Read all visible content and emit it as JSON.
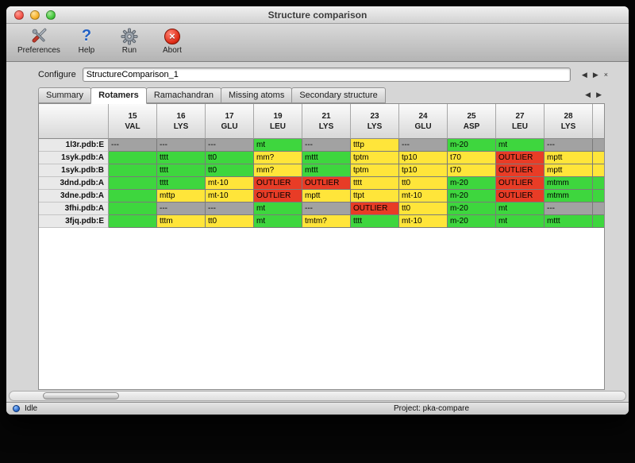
{
  "window": {
    "title": "Structure comparison"
  },
  "toolbar": {
    "items": [
      {
        "label": "Preferences",
        "icon": "preferences-tools-icon"
      },
      {
        "label": "Help",
        "icon": "help-question-icon",
        "glyph": "?"
      },
      {
        "label": "Run",
        "icon": "run-gear-icon"
      },
      {
        "label": "Abort",
        "icon": "abort-icon",
        "glyph": "×"
      }
    ]
  },
  "configure": {
    "label": "Configure",
    "value": "StructureComparison_1",
    "nav_back": "◀",
    "nav_forward": "▶",
    "nav_close": "×"
  },
  "tabs": {
    "items": [
      {
        "label": "Summary"
      },
      {
        "label": "Rotamers"
      },
      {
        "label": "Ramachandran"
      },
      {
        "label": "Missing atoms"
      },
      {
        "label": "Secondary structure"
      }
    ],
    "active_index": 1,
    "nav_back": "◀",
    "nav_forward": "▶"
  },
  "colors": {
    "green": "#3ed63e",
    "yellow": "#ffe53a",
    "gray": "#a2a2a2",
    "red": "#e83c26"
  },
  "table": {
    "columns": [
      {
        "num": "15",
        "res": "VAL"
      },
      {
        "num": "16",
        "res": "LYS"
      },
      {
        "num": "17",
        "res": "GLU"
      },
      {
        "num": "19",
        "res": "LEU"
      },
      {
        "num": "21",
        "res": "LYS"
      },
      {
        "num": "23",
        "res": "LYS"
      },
      {
        "num": "24",
        "res": "GLU"
      },
      {
        "num": "25",
        "res": "ASP"
      },
      {
        "num": "27",
        "res": "LEU"
      },
      {
        "num": "28",
        "res": "LYS"
      }
    ],
    "rows": [
      {
        "label": "1l3r.pdb:E",
        "partial": "gray",
        "cells": [
          [
            "---",
            "gray"
          ],
          [
            "---",
            "gray"
          ],
          [
            "---",
            "gray"
          ],
          [
            "mt",
            "green"
          ],
          [
            "---",
            "gray"
          ],
          [
            "tttp",
            "yellow"
          ],
          [
            "---",
            "gray"
          ],
          [
            "m-20",
            "green"
          ],
          [
            "mt",
            "green"
          ],
          [
            "---",
            "gray"
          ]
        ]
      },
      {
        "label": "1syk.pdb:A",
        "partial": "yellow",
        "cells": [
          [
            "",
            "green"
          ],
          [
            "tttt",
            "green"
          ],
          [
            "tt0",
            "green"
          ],
          [
            "mm?",
            "yellow"
          ],
          [
            "mttt",
            "green"
          ],
          [
            "tptm",
            "yellow"
          ],
          [
            "tp10",
            "yellow"
          ],
          [
            "t70",
            "yellow"
          ],
          [
            "OUTLIER",
            "red"
          ],
          [
            "mptt",
            "yellow"
          ]
        ]
      },
      {
        "label": "1syk.pdb:B",
        "partial": "yellow",
        "cells": [
          [
            "",
            "green"
          ],
          [
            "tttt",
            "green"
          ],
          [
            "tt0",
            "green"
          ],
          [
            "mm?",
            "yellow"
          ],
          [
            "mttt",
            "green"
          ],
          [
            "tptm",
            "yellow"
          ],
          [
            "tp10",
            "yellow"
          ],
          [
            "t70",
            "yellow"
          ],
          [
            "OUTLIER",
            "red"
          ],
          [
            "mptt",
            "yellow"
          ]
        ]
      },
      {
        "label": "3dnd.pdb:A",
        "partial": "green",
        "cells": [
          [
            "",
            "green"
          ],
          [
            "tttt",
            "green"
          ],
          [
            "mt-10",
            "yellow"
          ],
          [
            "OUTLIER",
            "red"
          ],
          [
            "OUTLIER",
            "red"
          ],
          [
            "tttt",
            "yellow"
          ],
          [
            "tt0",
            "yellow"
          ],
          [
            "m-20",
            "green"
          ],
          [
            "OUTLIER",
            "red"
          ],
          [
            "mtmm",
            "green"
          ]
        ]
      },
      {
        "label": "3dne.pdb:A",
        "partial": "green",
        "cells": [
          [
            "",
            "green"
          ],
          [
            "mttp",
            "yellow"
          ],
          [
            "mt-10",
            "yellow"
          ],
          [
            "OUTLIER",
            "red"
          ],
          [
            "mptt",
            "yellow"
          ],
          [
            "ttpt",
            "yellow"
          ],
          [
            "mt-10",
            "yellow"
          ],
          [
            "m-20",
            "green"
          ],
          [
            "OUTLIER",
            "red"
          ],
          [
            "mtmm",
            "green"
          ]
        ]
      },
      {
        "label": "3fhi.pdb:A",
        "partial": "gray",
        "cells": [
          [
            "",
            "green"
          ],
          [
            "---",
            "gray"
          ],
          [
            "---",
            "gray"
          ],
          [
            "mt",
            "green"
          ],
          [
            "---",
            "gray"
          ],
          [
            "OUTLIER",
            "red"
          ],
          [
            "tt0",
            "yellow"
          ],
          [
            "m-20",
            "green"
          ],
          [
            "mt",
            "green"
          ],
          [
            "---",
            "gray"
          ]
        ]
      },
      {
        "label": "3fjq.pdb:E",
        "partial": "green",
        "cells": [
          [
            "",
            "green"
          ],
          [
            "tttm",
            "yellow"
          ],
          [
            "tt0",
            "yellow"
          ],
          [
            "mt",
            "green"
          ],
          [
            "tmtm?",
            "yellow"
          ],
          [
            "tttt",
            "green"
          ],
          [
            "mt-10",
            "yellow"
          ],
          [
            "m-20",
            "green"
          ],
          [
            "mt",
            "green"
          ],
          [
            "mttt",
            "green"
          ]
        ]
      }
    ]
  },
  "statusbar": {
    "status": "Idle",
    "project": "Project: pka-compare"
  }
}
